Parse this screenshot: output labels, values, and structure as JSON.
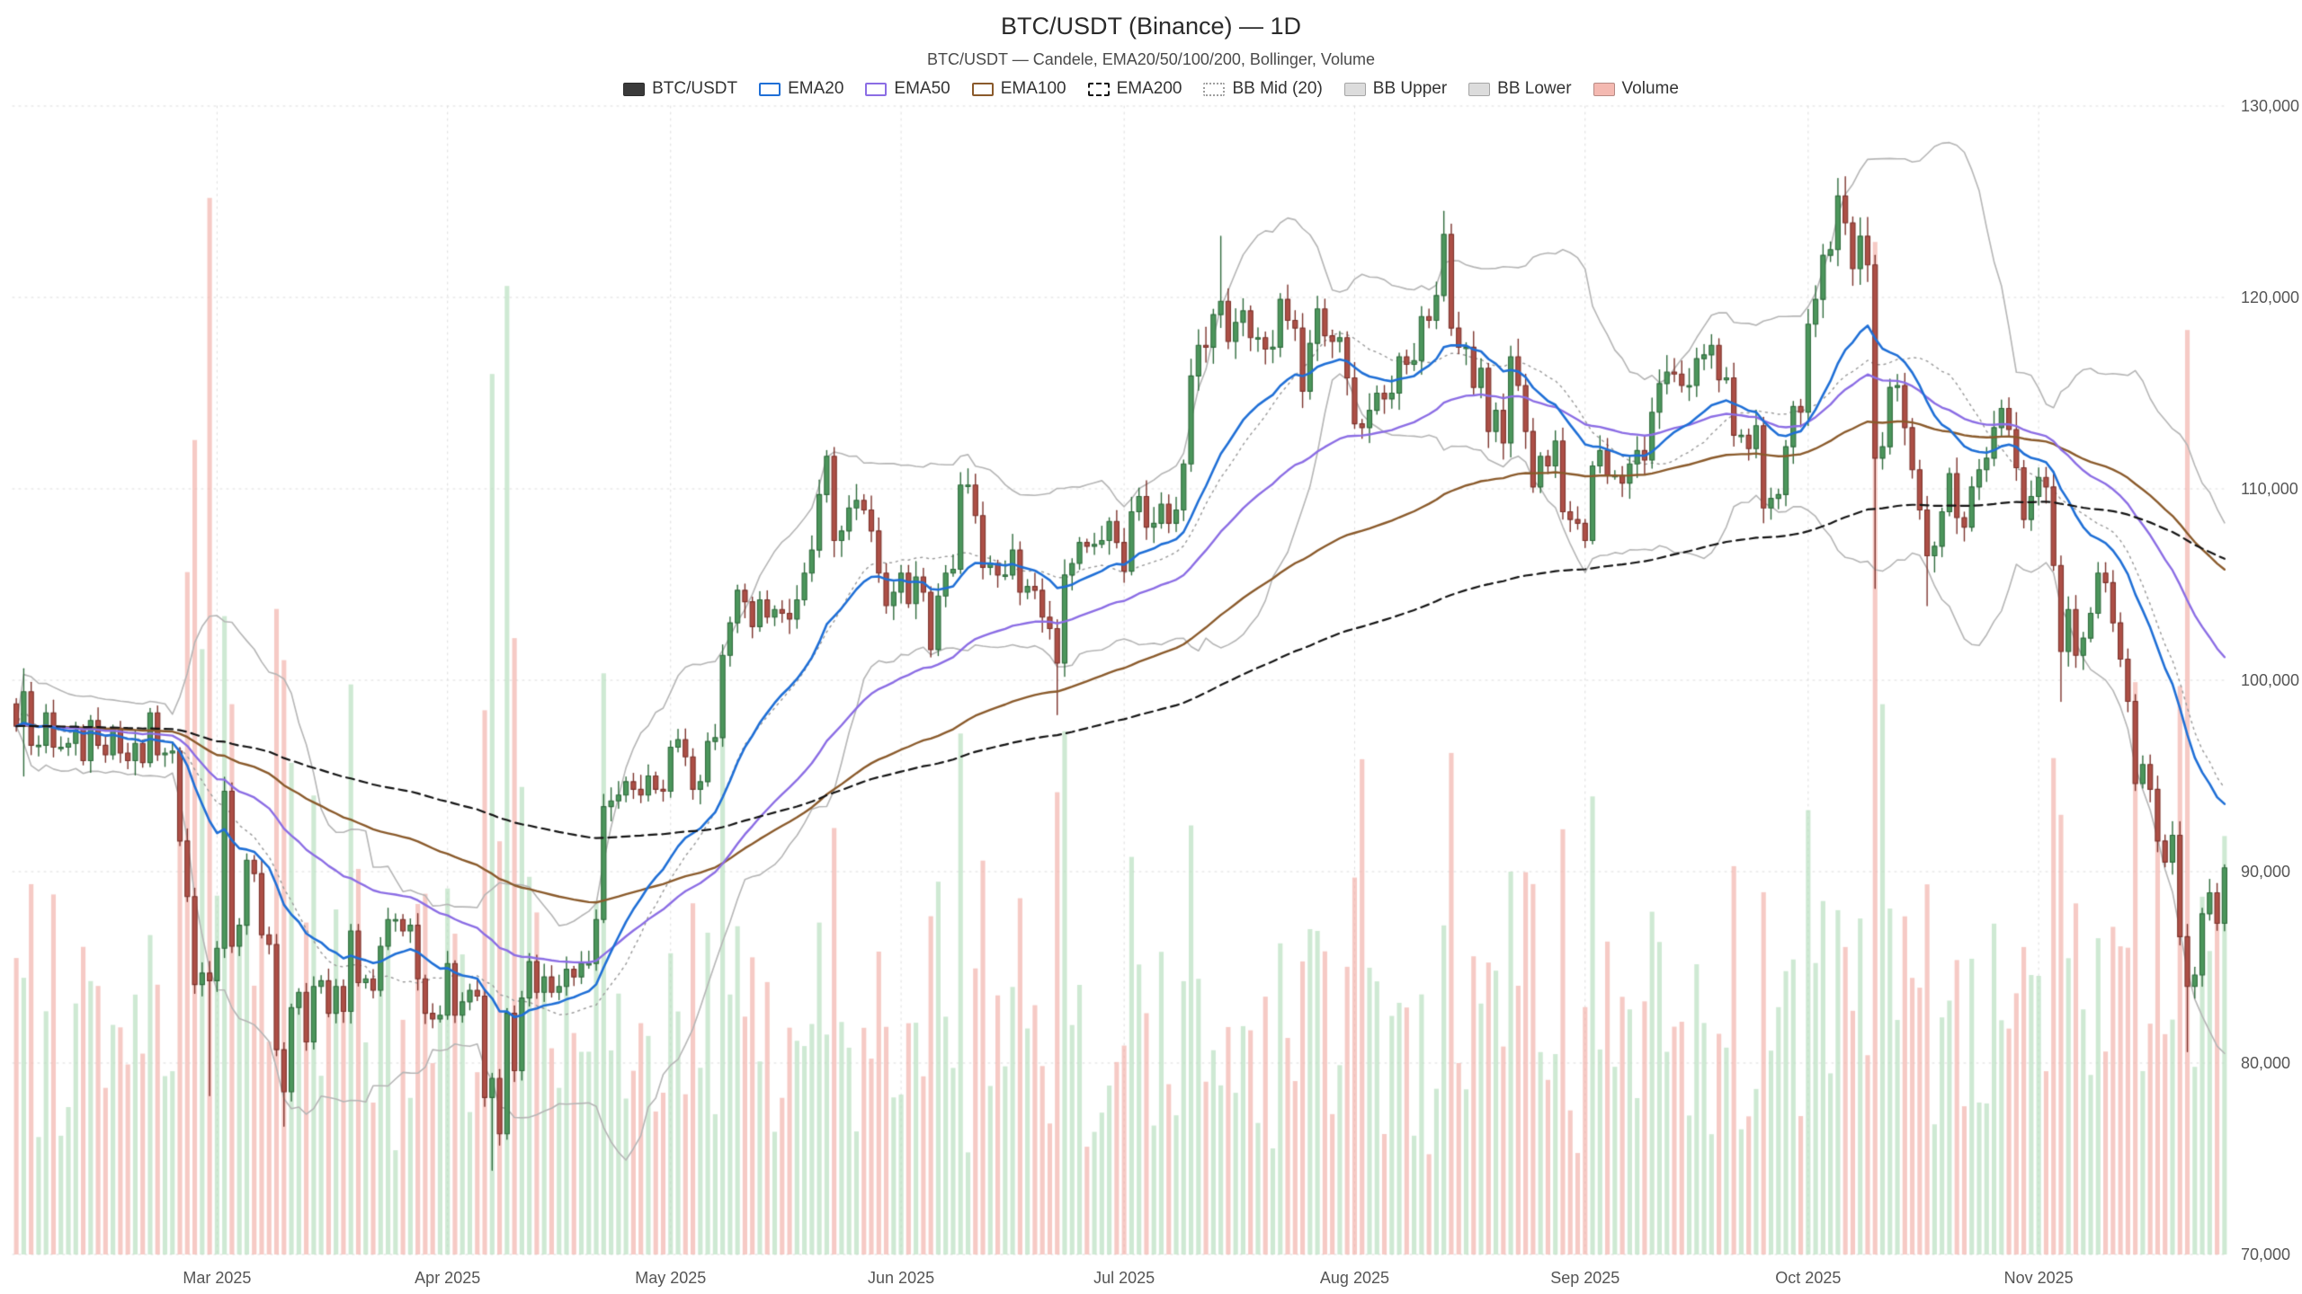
{
  "header": {
    "title": "BTC/USDT (Binance) — 1D",
    "subtitle": "BTC/USDT — Candele, EMA20/50/100/200, Bollinger, Volume"
  },
  "legend": {
    "items": [
      {
        "label": "BTC/USDT",
        "swatch": "fill",
        "color": "#3a3a3a"
      },
      {
        "label": "EMA20",
        "swatch": "outline",
        "color": "#1f6fd6"
      },
      {
        "label": "EMA50",
        "swatch": "outline",
        "color": "#8b6de4"
      },
      {
        "label": "EMA100",
        "swatch": "outline",
        "color": "#8a5a2b"
      },
      {
        "label": "EMA200",
        "swatch": "dashed",
        "color": "#141414"
      },
      {
        "label": "BB Mid (20)",
        "swatch": "dotted",
        "color": "#9e9e9e"
      },
      {
        "label": "BB Upper",
        "swatch": "fill",
        "color": "#dcdcdc"
      },
      {
        "label": "BB Lower",
        "swatch": "fill",
        "color": "#dcdcdc"
      },
      {
        "label": "Volume",
        "swatch": "fill",
        "color": "#f4b9b1"
      }
    ]
  },
  "chart_data": {
    "type": "candlestick",
    "symbol": "BTC/USDT",
    "exchange": "Binance",
    "timeframe": "1D",
    "indicators": [
      "EMA20",
      "EMA50",
      "EMA100",
      "EMA200",
      "Bollinger(20,2)",
      "Volume"
    ],
    "y_axis": {
      "min": 70000,
      "max": 130000,
      "ticks": [
        {
          "value": 70000,
          "label": "70,000"
        },
        {
          "value": 80000,
          "label": "80,000"
        },
        {
          "value": 90000,
          "label": "90,000"
        },
        {
          "value": 100000,
          "label": "100,000"
        },
        {
          "value": 110000,
          "label": "110,000"
        },
        {
          "value": 120000,
          "label": "120,000"
        },
        {
          "value": 130000,
          "label": "130,000"
        }
      ]
    },
    "x_axis": {
      "ticks": [
        {
          "date": "2025-03-01",
          "label": "Mar 2025"
        },
        {
          "date": "2025-04-01",
          "label": "Apr 2025"
        },
        {
          "date": "2025-05-01",
          "label": "May 2025"
        },
        {
          "date": "2025-06-01",
          "label": "Jun 2025"
        },
        {
          "date": "2025-07-01",
          "label": "Jul 2025"
        },
        {
          "date": "2025-08-01",
          "label": "Aug 2025"
        },
        {
          "date": "2025-09-01",
          "label": "Sep 2025"
        },
        {
          "date": "2025-10-01",
          "label": "Oct 2025"
        },
        {
          "date": "2025-11-01",
          "label": "Nov 2025"
        }
      ]
    },
    "start_date": "2025-02-02",
    "closes": [
      97600,
      99400,
      96600,
      96600,
      98300,
      96500,
      96500,
      96700,
      97400,
      95800,
      97900,
      96600,
      96100,
      97500,
      96200,
      95800,
      96700,
      95700,
      98300,
      96100,
      96200,
      96300,
      91600,
      88700,
      84100,
      84700,
      84300,
      86000,
      94200,
      86100,
      87200,
      90600,
      89900,
      86700,
      86200,
      80700,
      78500,
      82900,
      83700,
      81100,
      84000,
      84300,
      82600,
      84000,
      82700,
      86900,
      84200,
      84400,
      83800,
      86100,
      87500,
      87500,
      86900,
      87200,
      84400,
      82600,
      82300,
      82500,
      85200,
      82500,
      83200,
      83800,
      83500,
      78200,
      79200,
      76300,
      82600,
      79600,
      83400,
      85300,
      83700,
      84500,
      83700,
      84000,
      84900,
      84500,
      85200,
      85200,
      87500,
      93400,
      93700,
      94000,
      94700,
      94300,
      94000,
      95000,
      94300,
      94200,
      96500,
      96900,
      96000,
      94300,
      94700,
      96800,
      97000,
      101300,
      103000,
      104700,
      104100,
      102800,
      104200,
      103300,
      103700,
      103500,
      103200,
      104200,
      105600,
      106800,
      109700,
      111700,
      107300,
      107800,
      109000,
      109400,
      108900,
      107800,
      105600,
      103900,
      104600,
      105600,
      104000,
      105400,
      104600,
      101600,
      104400,
      105600,
      105800,
      110200,
      110200,
      108600,
      105900,
      106100,
      105500,
      105500,
      106800,
      104600,
      104900,
      104700,
      103300,
      102700,
      100900,
      105500,
      106100,
      107200,
      107000,
      107100,
      107300,
      108300,
      107200,
      105700,
      108800,
      109600,
      108000,
      108200,
      109200,
      108200,
      108900,
      111300,
      115900,
      117500,
      117400,
      119100,
      119800,
      117700,
      118700,
      119300,
      117900,
      117900,
      117300,
      117400,
      119900,
      118800,
      118400,
      115100,
      117600,
      119400,
      118000,
      117700,
      117900,
      115800,
      113400,
      113200,
      114100,
      115000,
      114700,
      115000,
      116900,
      116500,
      116700,
      119000,
      118800,
      120100,
      123300,
      118400,
      117400,
      117400,
      115300,
      116300,
      113000,
      114100,
      112400,
      116900,
      115400,
      113000,
      110100,
      111700,
      111200,
      112500,
      108800,
      108400,
      108200,
      107300,
      111200,
      112000,
      110700,
      110700,
      110300,
      111300,
      112000,
      111500,
      114000,
      115500,
      116100,
      116000,
      115400,
      115400,
      116800,
      117000,
      117500,
      115700,
      115800,
      112800,
      112800,
      112100,
      113300,
      109000,
      109500,
      109700,
      112200,
      114300,
      114000,
      118600,
      119900,
      122200,
      122500,
      125300,
      123900,
      121500,
      123200,
      121700,
      111600,
      112200,
      115300,
      115400,
      113200,
      111000,
      108900,
      106500,
      107000,
      108800,
      110800,
      108500,
      108000,
      110100,
      111000,
      111600,
      113200,
      114200,
      113100,
      111100,
      108400,
      109600,
      110600,
      110100,
      106000,
      101500,
      103700,
      101300,
      102200,
      103500,
      105600,
      105100,
      103000,
      101100,
      98900,
      94600,
      95600,
      94300,
      91600,
      90500,
      91900,
      86600,
      84000,
      84600,
      87800,
      88900,
      87300,
      90200
    ],
    "overrides": {
      "2025-02-03": {
        "high": 100600,
        "low": 95000
      },
      "2025-02-28": {
        "low": 78300
      },
      "2025-03-10": {
        "low": 76700
      },
      "2025-04-07": {
        "low": 74400
      },
      "2025-05-22": {
        "high": 112000
      },
      "2025-06-22": {
        "low": 98200
      },
      "2025-07-14": {
        "high": 123200
      },
      "2025-08-13": {
        "high": 124500
      },
      "2025-10-06": {
        "high": 126300
      },
      "2025-10-10": {
        "low": 104800
      },
      "2025-10-17": {
        "low": 103900
      },
      "2025-11-04": {
        "low": 98900
      },
      "2025-11-21": {
        "low": 80600
      }
    },
    "volume_overrides": {
      "2025-02-25": 62,
      "2025-02-26": 74,
      "2025-02-27": 55,
      "2025-02-28": 96,
      "2025-03-02": 58,
      "2025-03-03": 50,
      "2025-03-10": 54,
      "2025-04-07": 80,
      "2025-04-09": 88,
      "2025-04-10": 56,
      "2025-06-22": 42,
      "2025-08-02": 45,
      "2025-10-10": 92,
      "2025-10-11": 50,
      "2025-11-14": 52,
      "2025-11-21": 84
    },
    "colors": {
      "up_fill": "#4c965c",
      "up_edge": "#2f6b3c",
      "down_fill": "#ad4f46",
      "down_edge": "#7c332c",
      "vol_up": "#b9dfc1",
      "vol_down": "#f2b4ac",
      "ema20": "#1f6fd6",
      "ema50": "#8b6de4",
      "ema100": "#8a5a2b",
      "ema200": "#141414",
      "bb": "#b5b5b5",
      "bb_mid": "#9e9e9e",
      "grid": "#dddddd",
      "axis_text": "#555555"
    }
  }
}
